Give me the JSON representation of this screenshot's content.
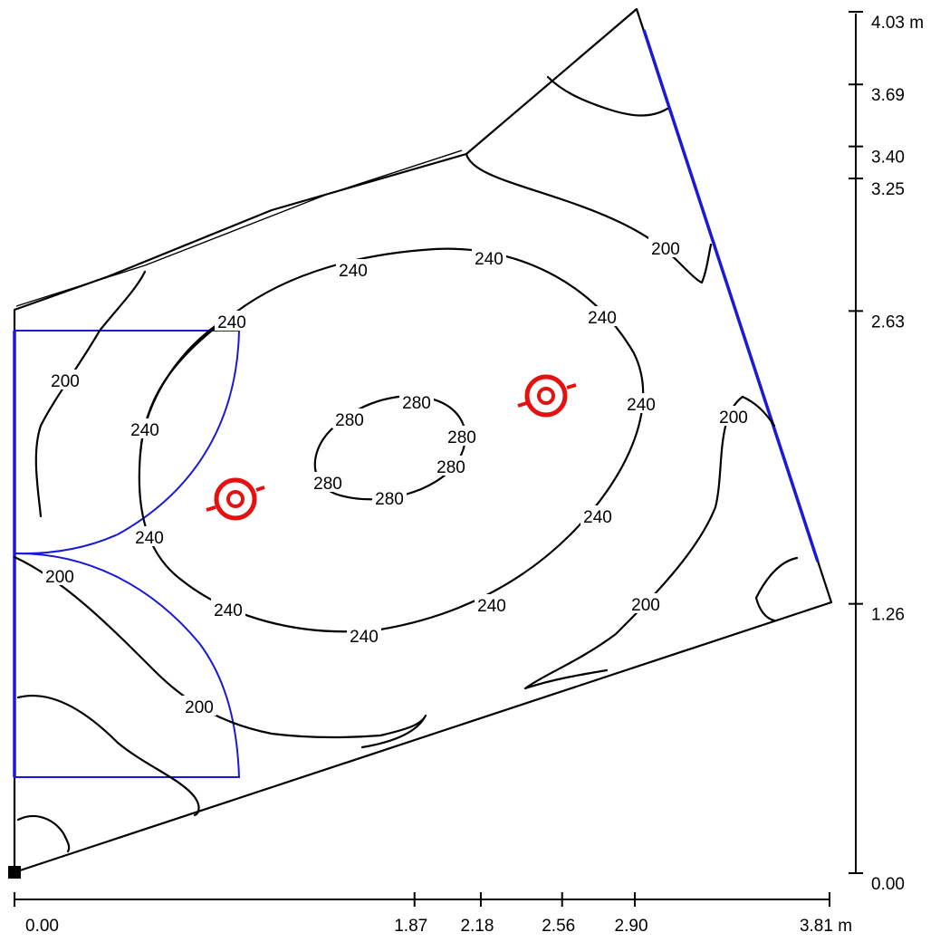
{
  "diagram": {
    "x_axis": {
      "unit": "m",
      "ticks": [
        {
          "value": 0.0,
          "label": "0.00"
        },
        {
          "value": 1.87,
          "label": "1.87"
        },
        {
          "value": 2.18,
          "label": "2.18"
        },
        {
          "value": 2.56,
          "label": "2.56"
        },
        {
          "value": 2.9,
          "label": "2.90"
        },
        {
          "value": 3.81,
          "label": "3.81 m"
        }
      ]
    },
    "y_axis": {
      "unit": "m",
      "ticks": [
        {
          "value": 0.0,
          "label": "0.00"
        },
        {
          "value": 1.26,
          "label": "1.26"
        },
        {
          "value": 2.63,
          "label": "2.63"
        },
        {
          "value": 3.25,
          "label": "3.25"
        },
        {
          "value": 3.4,
          "label": "3.40"
        },
        {
          "value": 3.69,
          "label": "3.69"
        },
        {
          "value": 4.03,
          "label": "4.03 m"
        }
      ]
    },
    "contour_levels": [
      "200",
      "240",
      "280"
    ],
    "contour_labels": {
      "l200_a": "200",
      "l200_b": "200",
      "l200_c": "200",
      "l200_d": "200",
      "l200_e": "200",
      "l200_f": "200",
      "l240_a": "240",
      "l240_b": "240",
      "l240_c": "240",
      "l240_d": "240",
      "l240_e": "240",
      "l240_f": "240",
      "l240_g": "240",
      "l240_h": "240",
      "l240_i": "240",
      "l240_j": "240",
      "l240_k": "240",
      "l240_l": "240",
      "l280_a": "280",
      "l280_b": "280",
      "l280_c": "280",
      "l280_d": "280",
      "l280_e": "280",
      "l280_f": "280"
    },
    "colors": {
      "contour": "#000000",
      "wall_highlight": "#1a1ad6",
      "luminaire": "#e51010",
      "origin_marker": "#000000"
    },
    "luminaire_count": 2
  }
}
